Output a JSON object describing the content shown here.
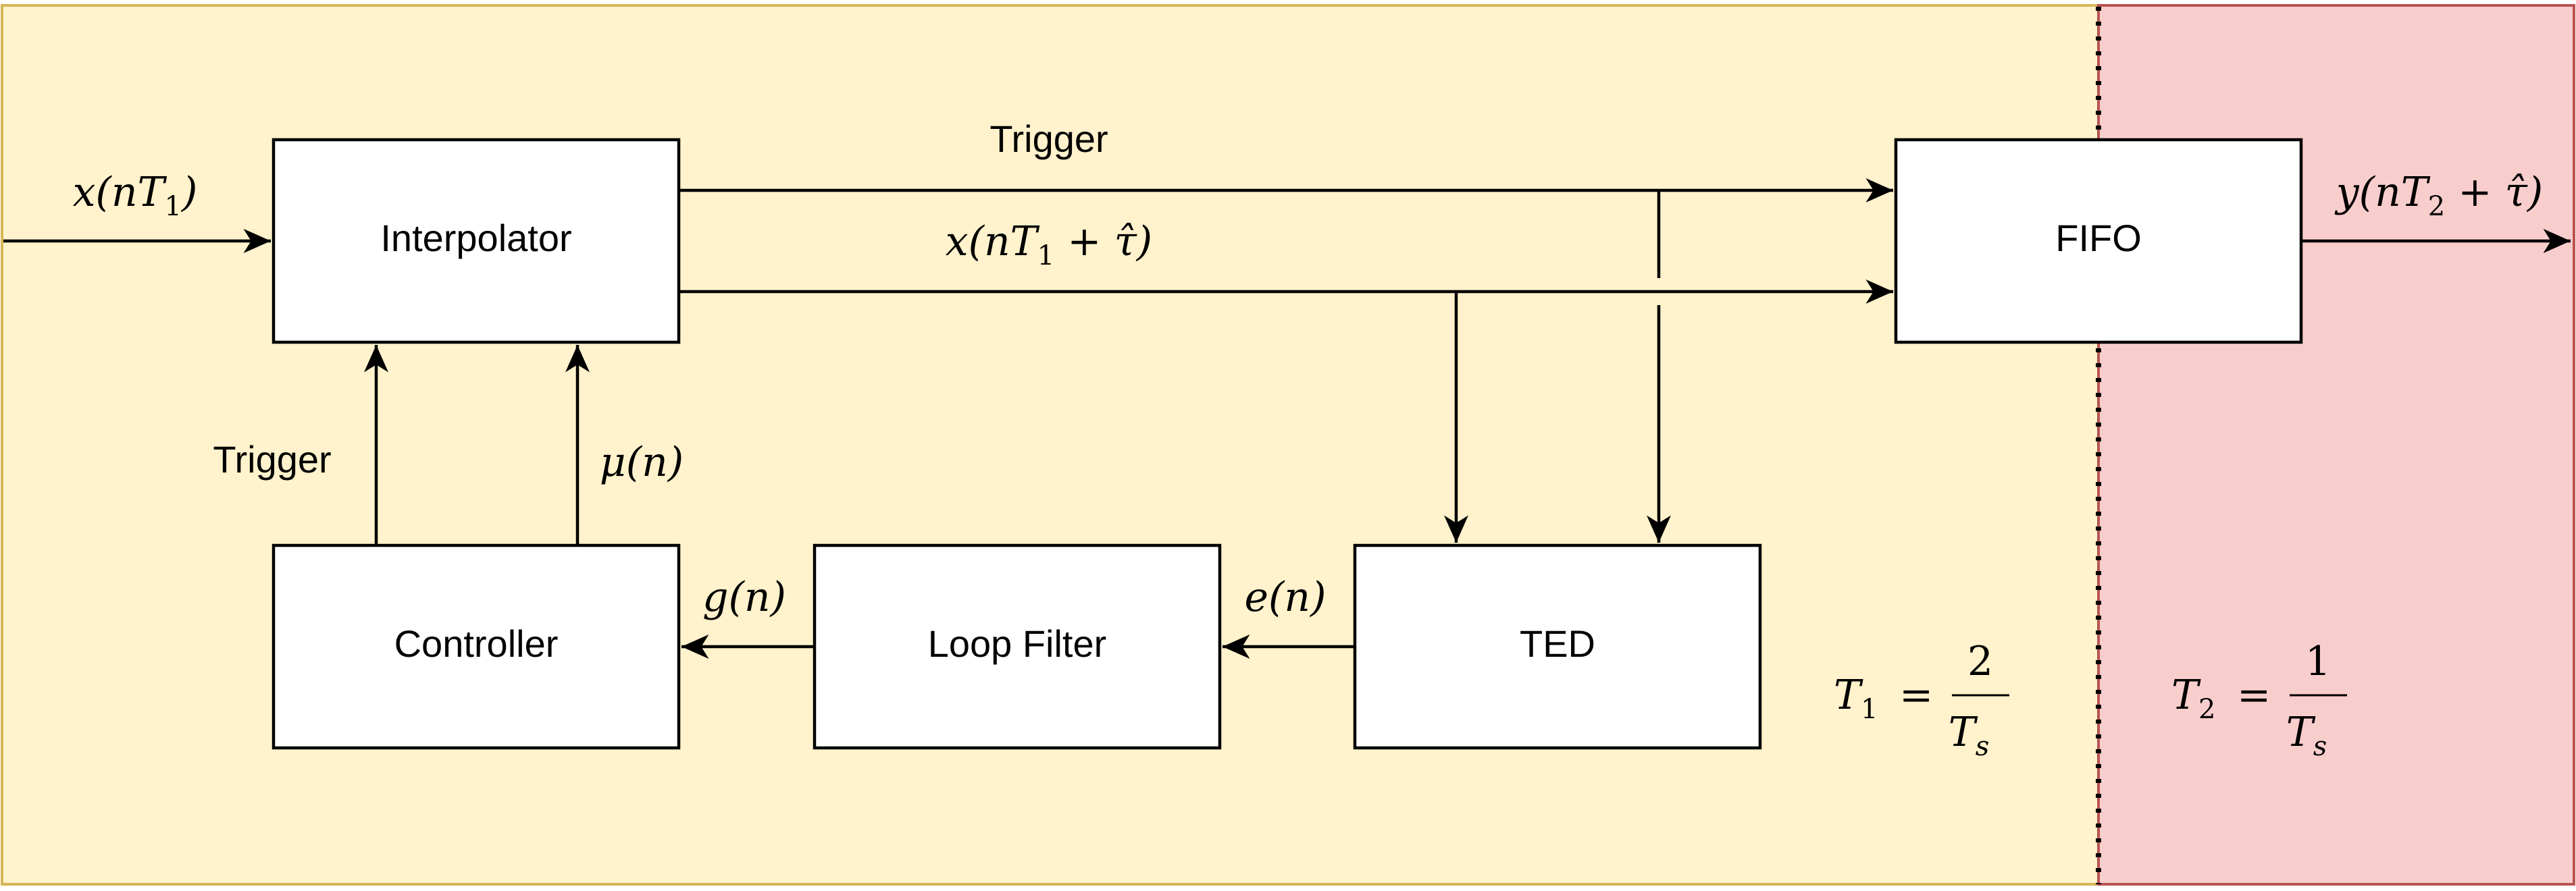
{
  "regions": {
    "left_color": "#fff2cc",
    "right_color": "#f8cecc"
  },
  "blocks": {
    "interpolator": "Interpolator",
    "fifo": "FIFO",
    "controller": "Controller",
    "loop_filter": "Loop Filter",
    "ted": "TED"
  },
  "labels": {
    "input": {
      "base": "x(nT",
      "sub": "1",
      "end": ")"
    },
    "output": {
      "base": "y(nT",
      "sub": "2",
      "end": " + τ̂)"
    },
    "trigger_top": "Trigger",
    "interp_out": {
      "base": "x(nT",
      "sub": "1",
      "end": " + τ̂)"
    },
    "trigger_left": "Trigger",
    "mu": "μ(n)",
    "g": "g(n)",
    "e": "e(n)"
  },
  "equations": {
    "t1": {
      "lhs": "T",
      "lhs_sub": "1",
      "eq": "=",
      "num": "2",
      "den": "T",
      "den_sub": "s"
    },
    "t2": {
      "lhs": "T",
      "lhs_sub": "2",
      "eq": "=",
      "num": "1",
      "den": "T",
      "den_sub": "s"
    }
  }
}
